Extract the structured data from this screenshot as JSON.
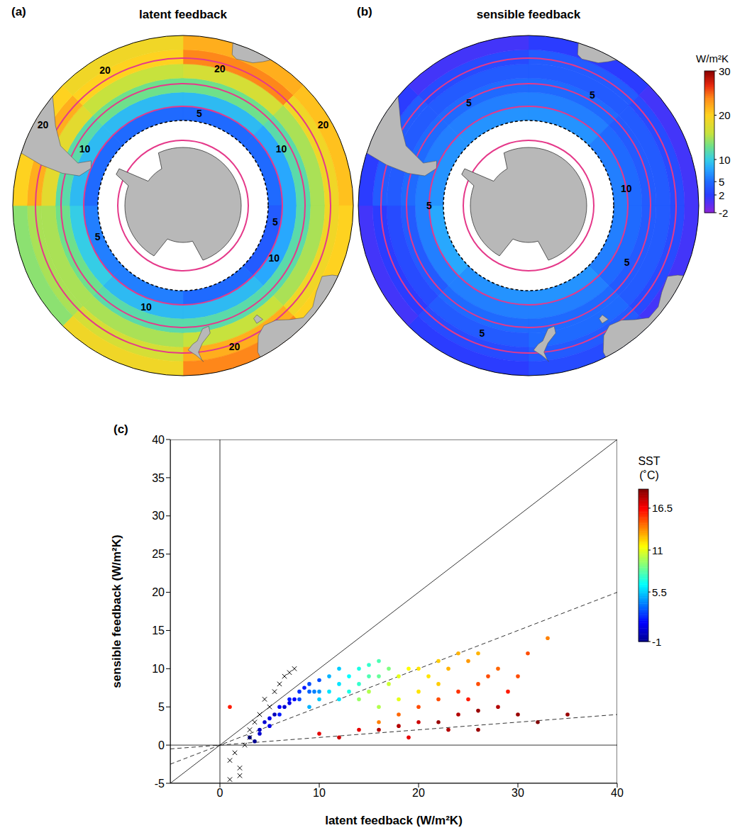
{
  "chart_data": [
    {
      "type": "polar_map",
      "panel": "(a)",
      "title": "latent feedback",
      "lat_edges": [
        -60,
        -55,
        -50,
        -45,
        -40,
        -35,
        -30
      ],
      "lon_edges": [
        0,
        45,
        90,
        135,
        180,
        225,
        270,
        315,
        360
      ],
      "values": [
        [
          5,
          5,
          4,
          5,
          6,
          6,
          5,
          5
        ],
        [
          9,
          8,
          8,
          9,
          9,
          10,
          9,
          9
        ],
        [
          13,
          12,
          12,
          12,
          12,
          13,
          12,
          13
        ],
        [
          17,
          15,
          15,
          16,
          15,
          15,
          18,
          16
        ],
        [
          24,
          19,
          19,
          22,
          17,
          15,
          22,
          20
        ],
        [
          22,
          21,
          20,
          24,
          19,
          14,
          20,
          19
        ]
      ],
      "contour_labels": [
        {
          "lat": -40,
          "lon": 15,
          "value": 20
        },
        {
          "lat": -33,
          "lon": 60,
          "value": 20
        },
        {
          "lat": -37,
          "lon": 160,
          "value": 20
        },
        {
          "lat": -33,
          "lon": 300,
          "value": 20
        },
        {
          "lat": -35,
          "lon": 330,
          "value": 20
        },
        {
          "lat": -52,
          "lon": 200,
          "value": 10
        },
        {
          "lat": -50,
          "lon": 60,
          "value": 10
        },
        {
          "lat": -50,
          "lon": 300,
          "value": 10
        },
        {
          "lat": -53,
          "lon": 120,
          "value": 10
        },
        {
          "lat": -57,
          "lon": 100,
          "value": 5
        },
        {
          "lat": -58,
          "lon": 250,
          "value": 5
        },
        {
          "lat": -57,
          "lon": 10,
          "value": 5
        }
      ],
      "fronts": {
        "lats": [
          -38,
          -47,
          -55,
          -67
        ],
        "color": "#e5398a"
      }
    },
    {
      "type": "polar_map",
      "panel": "(b)",
      "title": "sensible feedback",
      "lat_edges": [
        -60,
        -55,
        -50,
        -45,
        -40,
        -35,
        -30
      ],
      "lon_edges": [
        0,
        45,
        90,
        135,
        180,
        225,
        270,
        315,
        360
      ],
      "values": [
        [
          7,
          6,
          6,
          7,
          7,
          8,
          7,
          7
        ],
        [
          6,
          5,
          5,
          6,
          6,
          6,
          6,
          6
        ],
        [
          5,
          4,
          4,
          5,
          5,
          4,
          5,
          5
        ],
        [
          4,
          4,
          4,
          5,
          4,
          3,
          4,
          4
        ],
        [
          4,
          3,
          3,
          4,
          3,
          2,
          4,
          3
        ],
        [
          2,
          1,
          1,
          3,
          2,
          1,
          2,
          1
        ]
      ],
      "contour_labels": [
        {
          "lat": -45,
          "lon": 30,
          "value": 5
        },
        {
          "lat": -50,
          "lon": 120,
          "value": 5
        },
        {
          "lat": -42,
          "lon": 200,
          "value": 5
        },
        {
          "lat": -55,
          "lon": 270,
          "value": 5
        },
        {
          "lat": -48,
          "lon": 330,
          "value": 5
        },
        {
          "lat": -55,
          "lon": 80,
          "value": 10
        }
      ],
      "fronts": {
        "lats": [
          -38,
          -47,
          -55,
          -67
        ],
        "color": "#e5398a"
      },
      "colorbar": {
        "label": "W/m²K",
        "range": [
          -2,
          30
        ],
        "ticks": [
          -2,
          2,
          5,
          10,
          20,
          30
        ]
      }
    },
    {
      "type": "scatter",
      "panel": "(c)",
      "xlabel": "latent feedback (W/m²K)",
      "ylabel": "sensible feedback (W/m²K)",
      "xlim": [
        -5,
        40
      ],
      "xticks": [
        0,
        10,
        20,
        30,
        40
      ],
      "ylim": [
        -5,
        40
      ],
      "yticks": [
        -5,
        0,
        5,
        10,
        15,
        20,
        25,
        30,
        35,
        40
      ],
      "series": [
        {
          "marker": "dot",
          "x": [
            3,
            4,
            4.5,
            5,
            5.5,
            6,
            6,
            7,
            7,
            7.5,
            8,
            8.5,
            9,
            8,
            9,
            10,
            3.5,
            4,
            5,
            6.5,
            9,
            10,
            11,
            12,
            13,
            14,
            15,
            16,
            12,
            11,
            13,
            14,
            10,
            15,
            16,
            17,
            12,
            9.5,
            14,
            15,
            17,
            18,
            19,
            20,
            21,
            22,
            16,
            18,
            23,
            24,
            25,
            26,
            20,
            22,
            16,
            18,
            20,
            22,
            24,
            26,
            27,
            25,
            28,
            30,
            29,
            31,
            33,
            10,
            12,
            14,
            16,
            18,
            20,
            22,
            24,
            26,
            28,
            30,
            32,
            35,
            23,
            19,
            26,
            1
          ],
          "y": [
            1,
            2,
            3,
            3.5,
            4,
            5,
            4,
            5.5,
            6,
            6,
            7,
            7.5,
            8,
            6,
            7,
            8.5,
            0.5,
            1.5,
            2.5,
            5,
            5,
            6,
            7,
            8,
            9,
            10,
            10.5,
            11,
            6,
            9,
            7,
            8,
            7,
            9,
            9,
            10,
            10,
            7,
            6,
            7,
            8,
            9,
            10,
            10,
            9,
            11,
            5,
            6,
            10,
            12,
            11,
            12,
            7,
            8,
            3,
            4,
            5,
            6,
            7,
            8,
            9,
            6,
            10,
            9,
            7,
            12,
            14,
            1.5,
            1,
            2,
            2,
            2.5,
            3,
            3,
            4,
            4.5,
            5,
            4,
            3,
            4,
            2,
            1,
            2,
            5
          ],
          "sst": [
            -0.5,
            0,
            0.5,
            1,
            0,
            1.5,
            2,
            1,
            2,
            1.5,
            2.5,
            2,
            3,
            3,
            3.5,
            3,
            -1,
            0.5,
            1,
            0.5,
            5,
            5.5,
            6,
            6,
            6.5,
            7,
            7.5,
            8,
            6,
            5,
            7,
            7.5,
            4.5,
            8,
            8.5,
            9,
            5.5,
            4,
            9.5,
            10,
            10.5,
            11,
            11.5,
            12,
            12,
            12.5,
            10,
            11,
            13,
            13,
            13.5,
            13,
            12,
            12.5,
            14,
            14.5,
            15,
            15,
            15.5,
            15,
            15,
            16,
            14.5,
            15,
            16,
            15,
            14,
            17,
            17.5,
            17,
            18,
            18,
            17.5,
            18.5,
            18,
            18.5,
            18,
            18.5,
            19,
            18.5,
            18,
            17,
            18.5,
            16
          ]
        },
        {
          "marker": "x",
          "color": "#000000",
          "x": [
            1,
            1.5,
            2,
            2.5,
            2,
            3,
            3,
            4,
            5,
            5.5,
            6,
            6.5,
            7,
            7.5,
            3.5,
            1,
            4.5
          ],
          "y": [
            -2,
            -1,
            -3,
            0,
            -4,
            1,
            2,
            4,
            5,
            7,
            8,
            9,
            9.5,
            10,
            3,
            -4.5,
            6
          ]
        }
      ],
      "reference_lines": [
        {
          "slope": 1,
          "line_style": "solid"
        },
        {
          "slope": 0.5,
          "line_style": "dashed"
        },
        {
          "slope": 0.1,
          "line_style": "dashed"
        },
        {
          "x": 0,
          "line_style": "solid"
        },
        {
          "y": 0,
          "line_style": "solid"
        }
      ],
      "colorbar": {
        "label": "SST",
        "unit": "(˚C)",
        "range": [
          -1,
          19
        ],
        "ticks": [
          -1,
          5.5,
          11,
          16.5
        ]
      }
    }
  ]
}
